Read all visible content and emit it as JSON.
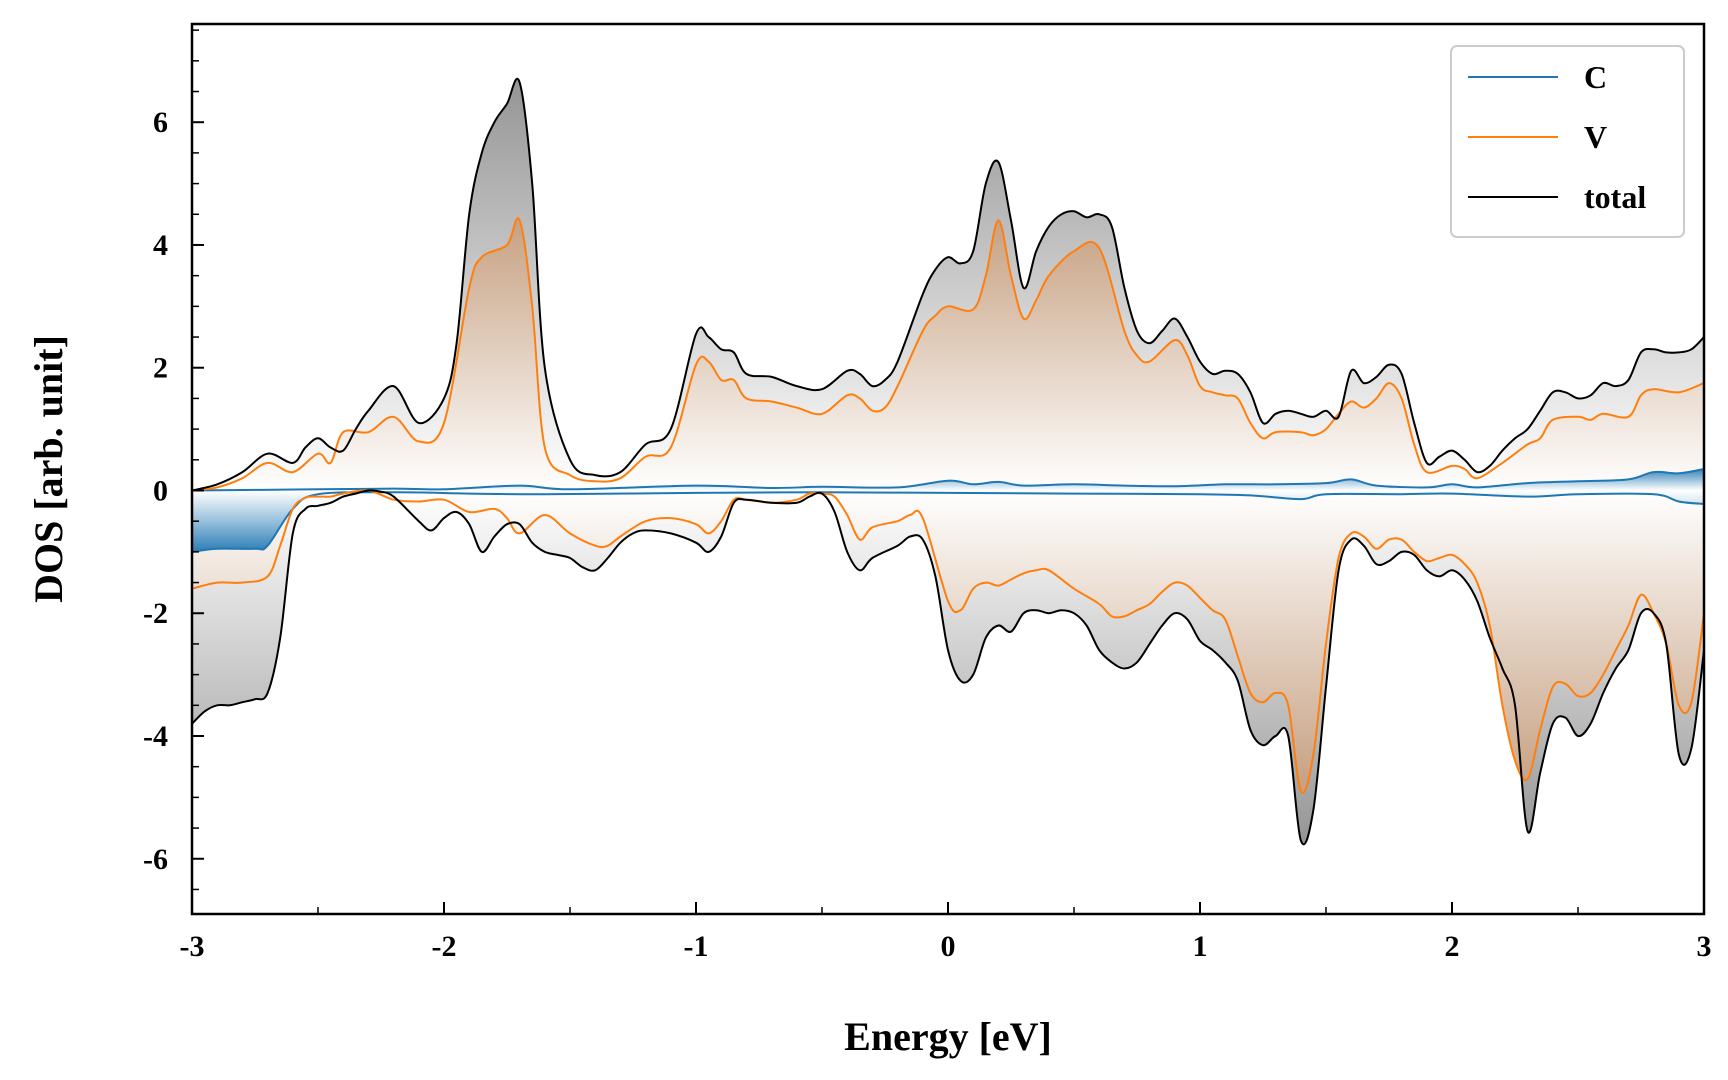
{
  "chart_data": {
    "type": "line",
    "xlabel": "Energy [eV]",
    "ylabel": "DOS [arb. unit]",
    "xlim": [
      -3,
      3
    ],
    "ylim": [
      -6.9,
      7.6
    ],
    "x_ticks": [
      -3,
      -2,
      -1,
      0,
      1,
      2,
      3
    ],
    "x_tick_labels": [
      "-3",
      "-2",
      "-1",
      "0",
      "1",
      "2",
      "3"
    ],
    "y_ticks": [
      -6,
      -4,
      -2,
      0,
      2,
      4,
      6
    ],
    "y_tick_labels": [
      "-6",
      "-4",
      "-2",
      "0",
      "2",
      "4",
      "6"
    ],
    "grid": false,
    "legend_position": "top-right",
    "series": [
      {
        "name": "C",
        "color": "#1f77b4",
        "spin_up": {
          "x": [
            -3.0,
            -2.5,
            -2.2,
            -2.0,
            -1.7,
            -1.5,
            -1.0,
            -0.7,
            -0.5,
            -0.2,
            0.0,
            0.1,
            0.2,
            0.3,
            0.5,
            0.7,
            0.9,
            1.1,
            1.3,
            1.5,
            1.6,
            1.7,
            1.9,
            2.0,
            2.1,
            2.3,
            2.5,
            2.7,
            2.8,
            2.9,
            3.0
          ],
          "y": [
            0.0,
            0.02,
            0.03,
            0.02,
            0.08,
            0.02,
            0.08,
            0.04,
            0.06,
            0.05,
            0.16,
            0.1,
            0.14,
            0.08,
            0.1,
            0.08,
            0.07,
            0.1,
            0.1,
            0.12,
            0.18,
            0.08,
            0.05,
            0.1,
            0.05,
            0.12,
            0.15,
            0.18,
            0.3,
            0.28,
            0.35
          ]
        },
        "spin_down": {
          "x": [
            -3.0,
            -2.9,
            -2.75,
            -2.7,
            -2.6,
            -2.5,
            -2.2,
            -1.9,
            -1.6,
            -1.0,
            -0.5,
            0.0,
            0.5,
            1.0,
            1.2,
            1.4,
            1.5,
            1.8,
            2.0,
            2.3,
            2.5,
            2.8,
            2.9,
            3.0
          ],
          "y": [
            -1.0,
            -0.95,
            -0.95,
            -0.9,
            -0.3,
            -0.06,
            -0.03,
            -0.05,
            -0.06,
            -0.04,
            -0.03,
            -0.04,
            -0.05,
            -0.06,
            -0.08,
            -0.14,
            -0.06,
            -0.06,
            -0.05,
            -0.1,
            -0.06,
            -0.06,
            -0.18,
            -0.22
          ]
        }
      },
      {
        "name": "V",
        "color": "#ff7f0e",
        "spin_up": {
          "x": [
            -3.0,
            -2.9,
            -2.8,
            -2.7,
            -2.6,
            -2.5,
            -2.45,
            -2.4,
            -2.3,
            -2.2,
            -2.1,
            -2.0,
            -1.9,
            -1.85,
            -1.75,
            -1.7,
            -1.65,
            -1.6,
            -1.5,
            -1.4,
            -1.3,
            -1.2,
            -1.1,
            -1.0,
            -0.95,
            -0.9,
            -0.85,
            -0.8,
            -0.7,
            -0.6,
            -0.5,
            -0.4,
            -0.35,
            -0.3,
            -0.25,
            -0.2,
            -0.1,
            -0.05,
            0.0,
            0.1,
            0.15,
            0.2,
            0.25,
            0.3,
            0.35,
            0.4,
            0.5,
            0.6,
            0.7,
            0.75,
            0.8,
            0.9,
            0.95,
            1.0,
            1.05,
            1.1,
            1.15,
            1.2,
            1.25,
            1.3,
            1.4,
            1.45,
            1.5,
            1.55,
            1.6,
            1.65,
            1.7,
            1.75,
            1.8,
            1.85,
            1.9,
            2.0,
            2.05,
            2.1,
            2.2,
            2.3,
            2.35,
            2.4,
            2.5,
            2.55,
            2.6,
            2.7,
            2.75,
            2.8,
            2.9,
            3.0
          ],
          "y": [
            0.0,
            0.05,
            0.2,
            0.45,
            0.3,
            0.6,
            0.45,
            0.95,
            0.95,
            1.2,
            0.8,
            1.1,
            3.3,
            3.8,
            4.0,
            4.4,
            3.0,
            0.7,
            0.25,
            0.15,
            0.2,
            0.55,
            0.7,
            2.05,
            2.1,
            1.8,
            1.8,
            1.5,
            1.45,
            1.35,
            1.25,
            1.55,
            1.5,
            1.3,
            1.35,
            1.7,
            2.6,
            2.85,
            3.0,
            2.95,
            3.5,
            4.4,
            3.5,
            2.8,
            3.1,
            3.5,
            3.9,
            3.95,
            2.6,
            2.2,
            2.1,
            2.45,
            2.2,
            1.7,
            1.6,
            1.55,
            1.5,
            1.1,
            0.85,
            0.95,
            0.95,
            0.9,
            1.0,
            1.25,
            1.45,
            1.35,
            1.5,
            1.75,
            1.5,
            0.75,
            0.3,
            0.4,
            0.35,
            0.2,
            0.45,
            0.75,
            0.85,
            1.15,
            1.2,
            1.15,
            1.25,
            1.2,
            1.55,
            1.65,
            1.6,
            1.75
          ]
        },
        "spin_down": {
          "x": [
            -3.0,
            -2.9,
            -2.8,
            -2.7,
            -2.65,
            -2.6,
            -2.55,
            -2.5,
            -2.45,
            -2.4,
            -2.3,
            -2.2,
            -2.1,
            -2.0,
            -1.9,
            -1.8,
            -1.75,
            -1.7,
            -1.6,
            -1.5,
            -1.4,
            -1.35,
            -1.3,
            -1.2,
            -1.1,
            -1.0,
            -0.95,
            -0.9,
            -0.85,
            -0.8,
            -0.7,
            -0.6,
            -0.55,
            -0.5,
            -0.45,
            -0.4,
            -0.35,
            -0.3,
            -0.2,
            -0.15,
            -0.1,
            0.0,
            0.05,
            0.1,
            0.15,
            0.2,
            0.25,
            0.3,
            0.35,
            0.4,
            0.5,
            0.6,
            0.65,
            0.7,
            0.75,
            0.8,
            0.85,
            0.9,
            0.95,
            1.0,
            1.05,
            1.1,
            1.15,
            1.2,
            1.25,
            1.3,
            1.35,
            1.4,
            1.45,
            1.5,
            1.55,
            1.6,
            1.65,
            1.7,
            1.75,
            1.8,
            1.85,
            1.9,
            1.95,
            2.0,
            2.05,
            2.1,
            2.15,
            2.2,
            2.25,
            2.3,
            2.35,
            2.4,
            2.45,
            2.5,
            2.55,
            2.6,
            2.65,
            2.7,
            2.75,
            2.8,
            2.85,
            2.9,
            2.95,
            3.0
          ],
          "y": [
            -1.6,
            -1.5,
            -1.5,
            -1.4,
            -0.9,
            -0.3,
            -0.12,
            -0.1,
            -0.1,
            -0.05,
            0.0,
            -0.15,
            -0.18,
            -0.15,
            -0.35,
            -0.3,
            -0.45,
            -0.7,
            -0.4,
            -0.7,
            -0.9,
            -0.9,
            -0.75,
            -0.5,
            -0.45,
            -0.55,
            -0.7,
            -0.5,
            -0.15,
            -0.15,
            -0.2,
            -0.15,
            -0.05,
            -0.05,
            -0.1,
            -0.4,
            -0.8,
            -0.6,
            -0.5,
            -0.4,
            -0.45,
            -1.8,
            -1.95,
            -1.6,
            -1.5,
            -1.55,
            -1.45,
            -1.35,
            -1.3,
            -1.3,
            -1.6,
            -1.85,
            -2.05,
            -2.05,
            -1.95,
            -1.85,
            -1.65,
            -1.5,
            -1.55,
            -1.75,
            -1.95,
            -2.1,
            -2.7,
            -3.3,
            -3.45,
            -3.3,
            -3.5,
            -4.9,
            -4.3,
            -2.5,
            -1.1,
            -0.7,
            -0.75,
            -0.95,
            -0.8,
            -0.8,
            -1.0,
            -1.15,
            -1.1,
            -1.05,
            -1.2,
            -1.5,
            -2.2,
            -3.5,
            -4.4,
            -4.7,
            -3.9,
            -3.2,
            -3.15,
            -3.35,
            -3.3,
            -3.0,
            -2.6,
            -2.2,
            -1.7,
            -2.0,
            -2.5,
            -3.5,
            -3.45,
            -2.0
          ]
        }
      },
      {
        "name": "total",
        "color": "#000000",
        "spin_up": {
          "x": [
            -3.0,
            -2.9,
            -2.8,
            -2.7,
            -2.6,
            -2.55,
            -2.5,
            -2.45,
            -2.4,
            -2.35,
            -2.3,
            -2.2,
            -2.1,
            -2.0,
            -1.95,
            -1.9,
            -1.85,
            -1.8,
            -1.75,
            -1.7,
            -1.65,
            -1.6,
            -1.5,
            -1.4,
            -1.3,
            -1.2,
            -1.1,
            -1.0,
            -0.95,
            -0.9,
            -0.85,
            -0.8,
            -0.7,
            -0.6,
            -0.5,
            -0.4,
            -0.35,
            -0.3,
            -0.25,
            -0.2,
            -0.1,
            -0.05,
            0.0,
            0.05,
            0.1,
            0.15,
            0.2,
            0.25,
            0.3,
            0.35,
            0.4,
            0.45,
            0.5,
            0.55,
            0.6,
            0.65,
            0.7,
            0.75,
            0.8,
            0.85,
            0.9,
            0.95,
            1.0,
            1.05,
            1.1,
            1.15,
            1.2,
            1.25,
            1.3,
            1.35,
            1.4,
            1.45,
            1.5,
            1.55,
            1.6,
            1.65,
            1.7,
            1.75,
            1.8,
            1.85,
            1.9,
            1.95,
            2.0,
            2.05,
            2.1,
            2.15,
            2.2,
            2.25,
            2.3,
            2.35,
            2.4,
            2.45,
            2.5,
            2.55,
            2.6,
            2.65,
            2.7,
            2.75,
            2.8,
            2.85,
            2.9,
            2.95,
            3.0
          ],
          "y": [
            0.0,
            0.1,
            0.3,
            0.6,
            0.45,
            0.7,
            0.85,
            0.7,
            0.65,
            1.0,
            1.3,
            1.7,
            1.1,
            1.5,
            2.4,
            4.5,
            5.5,
            6.0,
            6.3,
            6.65,
            5.0,
            2.0,
            0.5,
            0.25,
            0.3,
            0.75,
            1.0,
            2.55,
            2.5,
            2.3,
            2.25,
            1.9,
            1.85,
            1.7,
            1.65,
            1.95,
            1.9,
            1.7,
            1.8,
            2.1,
            3.2,
            3.6,
            3.8,
            3.7,
            3.9,
            5.0,
            5.35,
            4.4,
            3.3,
            3.9,
            4.3,
            4.5,
            4.55,
            4.45,
            4.5,
            4.3,
            3.3,
            2.6,
            2.4,
            2.6,
            2.8,
            2.5,
            2.1,
            1.9,
            1.95,
            1.9,
            1.6,
            1.1,
            1.25,
            1.3,
            1.25,
            1.2,
            1.3,
            1.2,
            1.95,
            1.75,
            1.85,
            2.05,
            1.9,
            1.1,
            0.45,
            0.55,
            0.65,
            0.5,
            0.3,
            0.4,
            0.65,
            0.85,
            1.0,
            1.3,
            1.6,
            1.6,
            1.5,
            1.55,
            1.75,
            1.7,
            1.8,
            2.25,
            2.3,
            2.25,
            2.25,
            2.3,
            2.5
          ]
        },
        "spin_down": {
          "x": [
            -3.0,
            -2.95,
            -2.9,
            -2.85,
            -2.8,
            -2.75,
            -2.7,
            -2.65,
            -2.6,
            -2.55,
            -2.5,
            -2.45,
            -2.4,
            -2.35,
            -2.3,
            -2.25,
            -2.2,
            -2.1,
            -2.05,
            -2.0,
            -1.95,
            -1.9,
            -1.85,
            -1.8,
            -1.75,
            -1.7,
            -1.65,
            -1.6,
            -1.55,
            -1.5,
            -1.45,
            -1.4,
            -1.35,
            -1.3,
            -1.25,
            -1.2,
            -1.1,
            -1.0,
            -0.95,
            -0.9,
            -0.85,
            -0.8,
            -0.7,
            -0.6,
            -0.55,
            -0.5,
            -0.45,
            -0.4,
            -0.35,
            -0.3,
            -0.2,
            -0.15,
            -0.1,
            -0.05,
            0.0,
            0.05,
            0.1,
            0.15,
            0.2,
            0.25,
            0.3,
            0.35,
            0.4,
            0.45,
            0.5,
            0.55,
            0.6,
            0.65,
            0.7,
            0.75,
            0.8,
            0.85,
            0.9,
            0.95,
            1.0,
            1.05,
            1.1,
            1.15,
            1.2,
            1.25,
            1.3,
            1.35,
            1.4,
            1.45,
            1.5,
            1.55,
            1.6,
            1.65,
            1.7,
            1.75,
            1.8,
            1.85,
            1.9,
            1.95,
            2.0,
            2.05,
            2.1,
            2.15,
            2.2,
            2.25,
            2.3,
            2.35,
            2.4,
            2.45,
            2.5,
            2.55,
            2.6,
            2.65,
            2.7,
            2.75,
            2.8,
            2.85,
            2.9,
            2.95,
            3.0
          ],
          "y": [
            -3.8,
            -3.6,
            -3.5,
            -3.5,
            -3.45,
            -3.4,
            -3.3,
            -2.4,
            -0.7,
            -0.3,
            -0.25,
            -0.2,
            -0.1,
            -0.05,
            0.0,
            -0.02,
            -0.1,
            -0.5,
            -0.65,
            -0.45,
            -0.35,
            -0.55,
            -1.0,
            -0.75,
            -0.55,
            -0.55,
            -0.85,
            -1.0,
            -1.05,
            -1.1,
            -1.25,
            -1.3,
            -1.1,
            -0.85,
            -0.7,
            -0.65,
            -0.7,
            -0.85,
            -1.0,
            -0.75,
            -0.2,
            -0.15,
            -0.2,
            -0.2,
            -0.1,
            -0.05,
            -0.35,
            -1.0,
            -1.3,
            -1.1,
            -0.9,
            -0.75,
            -0.8,
            -1.4,
            -2.6,
            -3.1,
            -3.0,
            -2.4,
            -2.2,
            -2.3,
            -2.0,
            -1.95,
            -2.0,
            -1.95,
            -2.0,
            -2.2,
            -2.6,
            -2.8,
            -2.9,
            -2.8,
            -2.5,
            -2.2,
            -2.0,
            -2.1,
            -2.45,
            -2.6,
            -2.8,
            -3.1,
            -3.9,
            -4.15,
            -4.0,
            -4.0,
            -5.7,
            -5.2,
            -3.2,
            -1.3,
            -0.8,
            -0.9,
            -1.2,
            -1.15,
            -1.0,
            -1.05,
            -1.3,
            -1.4,
            -1.3,
            -1.45,
            -1.8,
            -2.4,
            -2.9,
            -3.5,
            -5.55,
            -4.6,
            -3.8,
            -3.7,
            -4.0,
            -3.8,
            -3.3,
            -2.9,
            -2.6,
            -2.0,
            -2.0,
            -2.5,
            -4.3,
            -4.2,
            -2.6
          ]
        }
      }
    ]
  }
}
